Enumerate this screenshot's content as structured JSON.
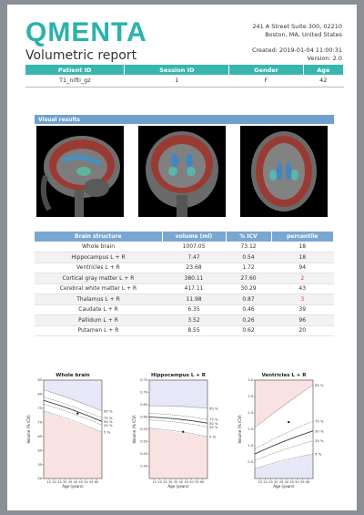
{
  "header": {
    "logo": "QMENTA",
    "address_line1": "241 A Street Suite 300, 02210",
    "address_line2": "Boston, MA, United States",
    "title": "Volumetric report",
    "created": "Created: 2019-01-04 11:00:31",
    "version": "Version: 2.0"
  },
  "info": {
    "headers": [
      "Patient ID",
      "Session ID",
      "Gender",
      "Age"
    ],
    "row": [
      "T1_nifti_gz",
      "1",
      "F",
      "42"
    ]
  },
  "visual_results": {
    "title": "Visual results"
  },
  "structures": {
    "headers": [
      "Brain structure",
      "volume (ml)",
      "% ICV",
      "percentile"
    ],
    "rows": [
      {
        "name": "Whole brain",
        "volume": "1007.05",
        "icv": "73.12",
        "percentile": "18",
        "flag": false
      },
      {
        "name": "Hippocampus L + R",
        "volume": "7.47",
        "icv": "0.54",
        "percentile": "18",
        "flag": false
      },
      {
        "name": "Ventricles L + R",
        "volume": "23.68",
        "icv": "1.72",
        "percentile": "94",
        "flag": false
      },
      {
        "name": "Cortical gray matter L + R",
        "volume": "380.11",
        "icv": "27.60",
        "percentile": "2",
        "flag": true
      },
      {
        "name": "Cerebral white matter L + R",
        "volume": "417.11",
        "icv": "30.29",
        "percentile": "43",
        "flag": false
      },
      {
        "name": "Thalamus L + R",
        "volume": "11.98",
        "icv": "0.87",
        "percentile": "3",
        "flag": true
      },
      {
        "name": "Caudate L + R",
        "volume": "6.35",
        "icv": "0.46",
        "percentile": "39",
        "flag": false
      },
      {
        "name": "Pallidum L + R",
        "volume": "3.52",
        "icv": "0.26",
        "percentile": "96",
        "flag": false
      },
      {
        "name": "Putamen L + R",
        "volume": "8.55",
        "icv": "0.62",
        "percentile": "20",
        "flag": false
      }
    ]
  },
  "colors": {
    "teal": "#37b6ae",
    "blue": "#7aa6d2",
    "alert": "#e03c2f"
  },
  "chart_data": [
    {
      "type": "line",
      "title": "Whole brain",
      "xlabel": "Age (years)",
      "ylabel": "Volume (% ICV)",
      "xlim": [
        10,
        65
      ],
      "ylim": [
        50,
        85
      ],
      "xticks": [
        "15",
        "20",
        "25",
        "30",
        "35",
        "40",
        "45",
        "50",
        "55",
        "60"
      ],
      "yticks": [
        "50",
        "55",
        "60",
        "65",
        "70",
        "75",
        "80",
        "85"
      ],
      "percentile_labels": [
        "95 %",
        "75 %",
        "50 %",
        "25 %",
        "5 %"
      ],
      "series": [
        {
          "name": "95 %",
          "x": [
            10,
            65
          ],
          "y": [
            81.5,
            74.0
          ]
        },
        {
          "name": "75 %",
          "x": [
            10,
            65
          ],
          "y": [
            79.0,
            71.5
          ]
        },
        {
          "name": "50 %",
          "x": [
            10,
            65
          ],
          "y": [
            77.8,
            70.3
          ]
        },
        {
          "name": "25 %",
          "x": [
            10,
            65
          ],
          "y": [
            76.5,
            69.0
          ]
        },
        {
          "name": "5 %",
          "x": [
            10,
            65
          ],
          "y": [
            74.0,
            66.5
          ]
        }
      ],
      "subject": {
        "x": 42,
        "y": 73.12
      }
    },
    {
      "type": "line",
      "title": "Hippocampus L + R",
      "xlabel": "Age (years)",
      "ylabel": "Volume (% ICV)",
      "xlim": [
        10,
        65
      ],
      "ylim": [
        0.35,
        0.75
      ],
      "xticks": [
        "15",
        "20",
        "25",
        "30",
        "35",
        "40",
        "45",
        "50",
        "55",
        "60"
      ],
      "yticks": [
        "0.40",
        "0.45",
        "0.50",
        "0.55",
        "0.60",
        "0.65",
        "0.70",
        "0.75"
      ],
      "percentile_labels": [
        "95 %",
        "75 %",
        "50 %",
        "25 %",
        "5 %"
      ],
      "series": [
        {
          "name": "95 %",
          "x": [
            10,
            65
          ],
          "y": [
            0.645,
            0.635
          ]
        },
        {
          "name": "75 %",
          "x": [
            10,
            65
          ],
          "y": [
            0.615,
            0.59
          ]
        },
        {
          "name": "50 %",
          "x": [
            10,
            65
          ],
          "y": [
            0.6,
            0.575
          ]
        },
        {
          "name": "25 %",
          "x": [
            10,
            65
          ],
          "y": [
            0.588,
            0.56
          ]
        },
        {
          "name": "5 %",
          "x": [
            10,
            65
          ],
          "y": [
            0.555,
            0.52
          ]
        }
      ],
      "subject": {
        "x": 42,
        "y": 0.54
      }
    },
    {
      "type": "line",
      "title": "Ventricles L + R",
      "xlabel": "Age (years)",
      "ylabel": "Volume (% ICV)",
      "xlim": [
        10,
        65
      ],
      "ylim": [
        0.0,
        3.0
      ],
      "xticks": [
        "15",
        "20",
        "25",
        "30",
        "35",
        "40",
        "45",
        "50",
        "55",
        "60"
      ],
      "yticks": [
        "0.5",
        "1.0",
        "1.5",
        "2.0",
        "2.5",
        "3.0"
      ],
      "percentile_labels": [
        "95 %",
        "75 %",
        "50 %",
        "25 %",
        "5 %"
      ],
      "series": [
        {
          "name": "95 %",
          "x": [
            10,
            65
          ],
          "y": [
            1.55,
            2.85
          ]
        },
        {
          "name": "75 %",
          "x": [
            10,
            65
          ],
          "y": [
            0.9,
            1.75
          ]
        },
        {
          "name": "50 %",
          "x": [
            10,
            65
          ],
          "y": [
            0.75,
            1.45
          ]
        },
        {
          "name": "25 %",
          "x": [
            10,
            65
          ],
          "y": [
            0.55,
            1.15
          ]
        },
        {
          "name": "5 %",
          "x": [
            10,
            65
          ],
          "y": [
            0.3,
            0.75
          ]
        }
      ],
      "subject": {
        "x": 42,
        "y": 1.72
      }
    }
  ]
}
